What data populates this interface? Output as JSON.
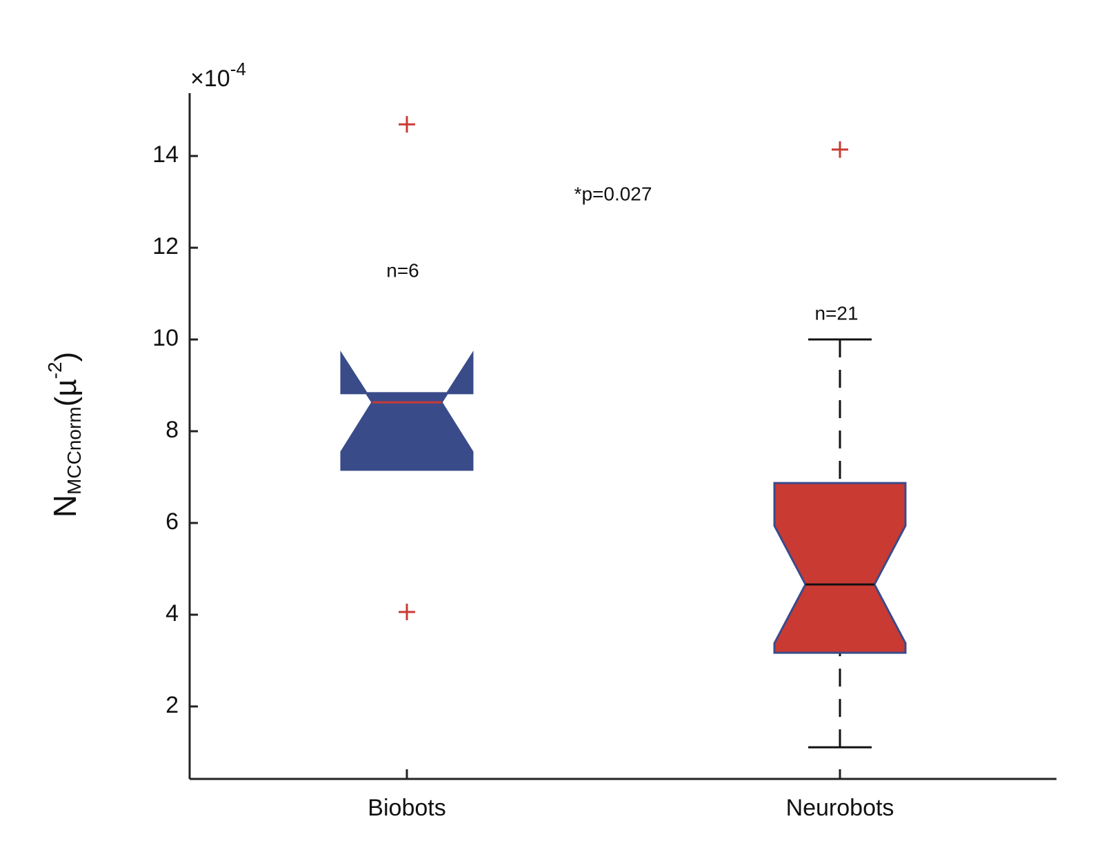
{
  "chart_data": {
    "type": "boxplot",
    "ylabel": [
      "N",
      "MCCnorm",
      "(µ",
      "-2",
      ")"
    ],
    "y_multiplier": {
      "base": "×10",
      "exponent": "-4"
    },
    "annotations": [
      "*p=0.027",
      "n=6",
      "n=21"
    ],
    "categories": [
      "Biobots",
      "Neurobots"
    ],
    "boxes": [
      {
        "q1": 7.16,
        "median": 8.63,
        "q3": 8.83,
        "notch_low": 7.55,
        "notch_high": 9.68,
        "whisker_low": 7.16,
        "whisker_high": 8.83,
        "outliers": [
          14.69,
          4.06
        ],
        "color": "#3a4b8a",
        "edge_color": "#3a4b8a",
        "median_color": "#c93a33"
      },
      {
        "q1": 3.17,
        "median": 4.66,
        "q3": 6.87,
        "notch_low": 3.38,
        "notch_high": 5.94,
        "whisker_low": 1.11,
        "whisker_high": 10.0,
        "outliers": [
          14.14
        ],
        "color": "#c93a33",
        "edge_color": "#3a4b8a",
        "median_color": "#111111"
      }
    ],
    "outlier_color": "#c93a33",
    "ylim": [
      0.42,
      15.37
    ],
    "yticks": [
      2,
      4,
      6,
      8,
      10,
      12,
      14
    ],
    "grid": false
  }
}
